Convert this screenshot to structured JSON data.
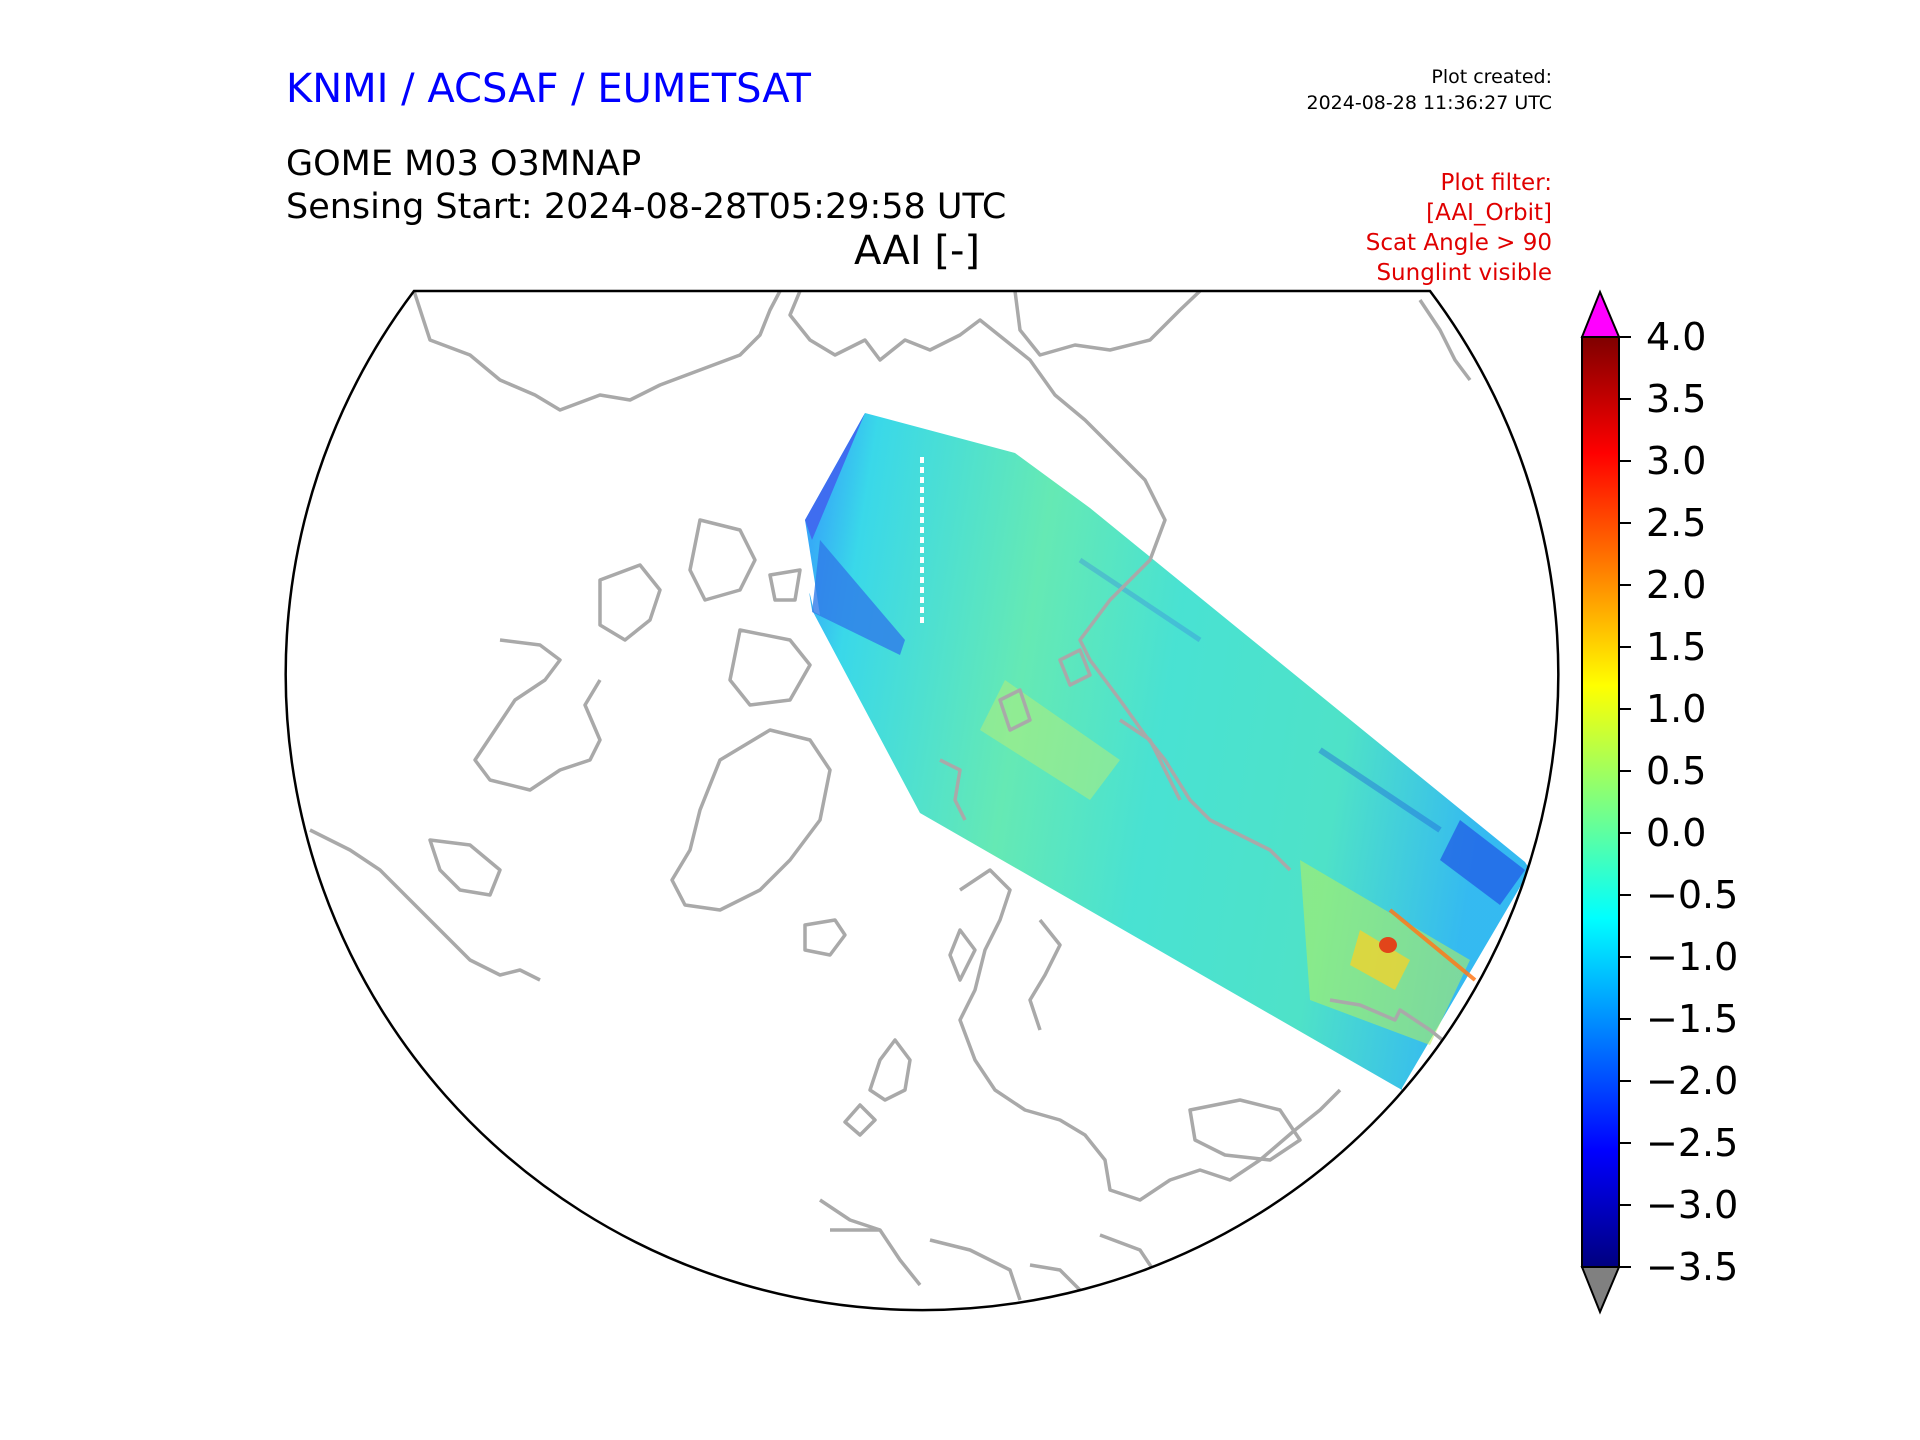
{
  "header": {
    "organization": "KNMI / ACSAF / EUMETSAT",
    "product": "GOME M03 O3MNAP",
    "sensing_start": "Sensing Start: 2024-08-28T05:29:58 UTC",
    "parameter": "AAI [-]",
    "plot_created_label": "Plot created:",
    "plot_created_time": "2024-08-28 11:36:27 UTC"
  },
  "plot_filter": {
    "title": "Plot filter:",
    "lines": [
      "[AAI_Orbit]",
      "Scat Angle > 90",
      "Sunglint visible"
    ]
  },
  "colorbar": {
    "min": -3.5,
    "max": 4.0,
    "ticks": [
      "4.0",
      "3.5",
      "3.0",
      "2.5",
      "2.0",
      "1.5",
      "1.0",
      "0.5",
      "0.0",
      "−0.5",
      "−1.0",
      "−1.5",
      "−2.0",
      "−2.5",
      "−3.0",
      "−3.5"
    ],
    "over_color": "#ff00ff",
    "under_color": "#808080",
    "colormap": [
      "#00007f",
      "#0000ff",
      "#007fff",
      "#00ffff",
      "#7fff7f",
      "#ffff00",
      "#ff7f00",
      "#ff0000",
      "#7f0000"
    ]
  },
  "map": {
    "projection": "north-polar",
    "coastline_color": "#a9a9a9",
    "frame_color": "#000000"
  }
}
